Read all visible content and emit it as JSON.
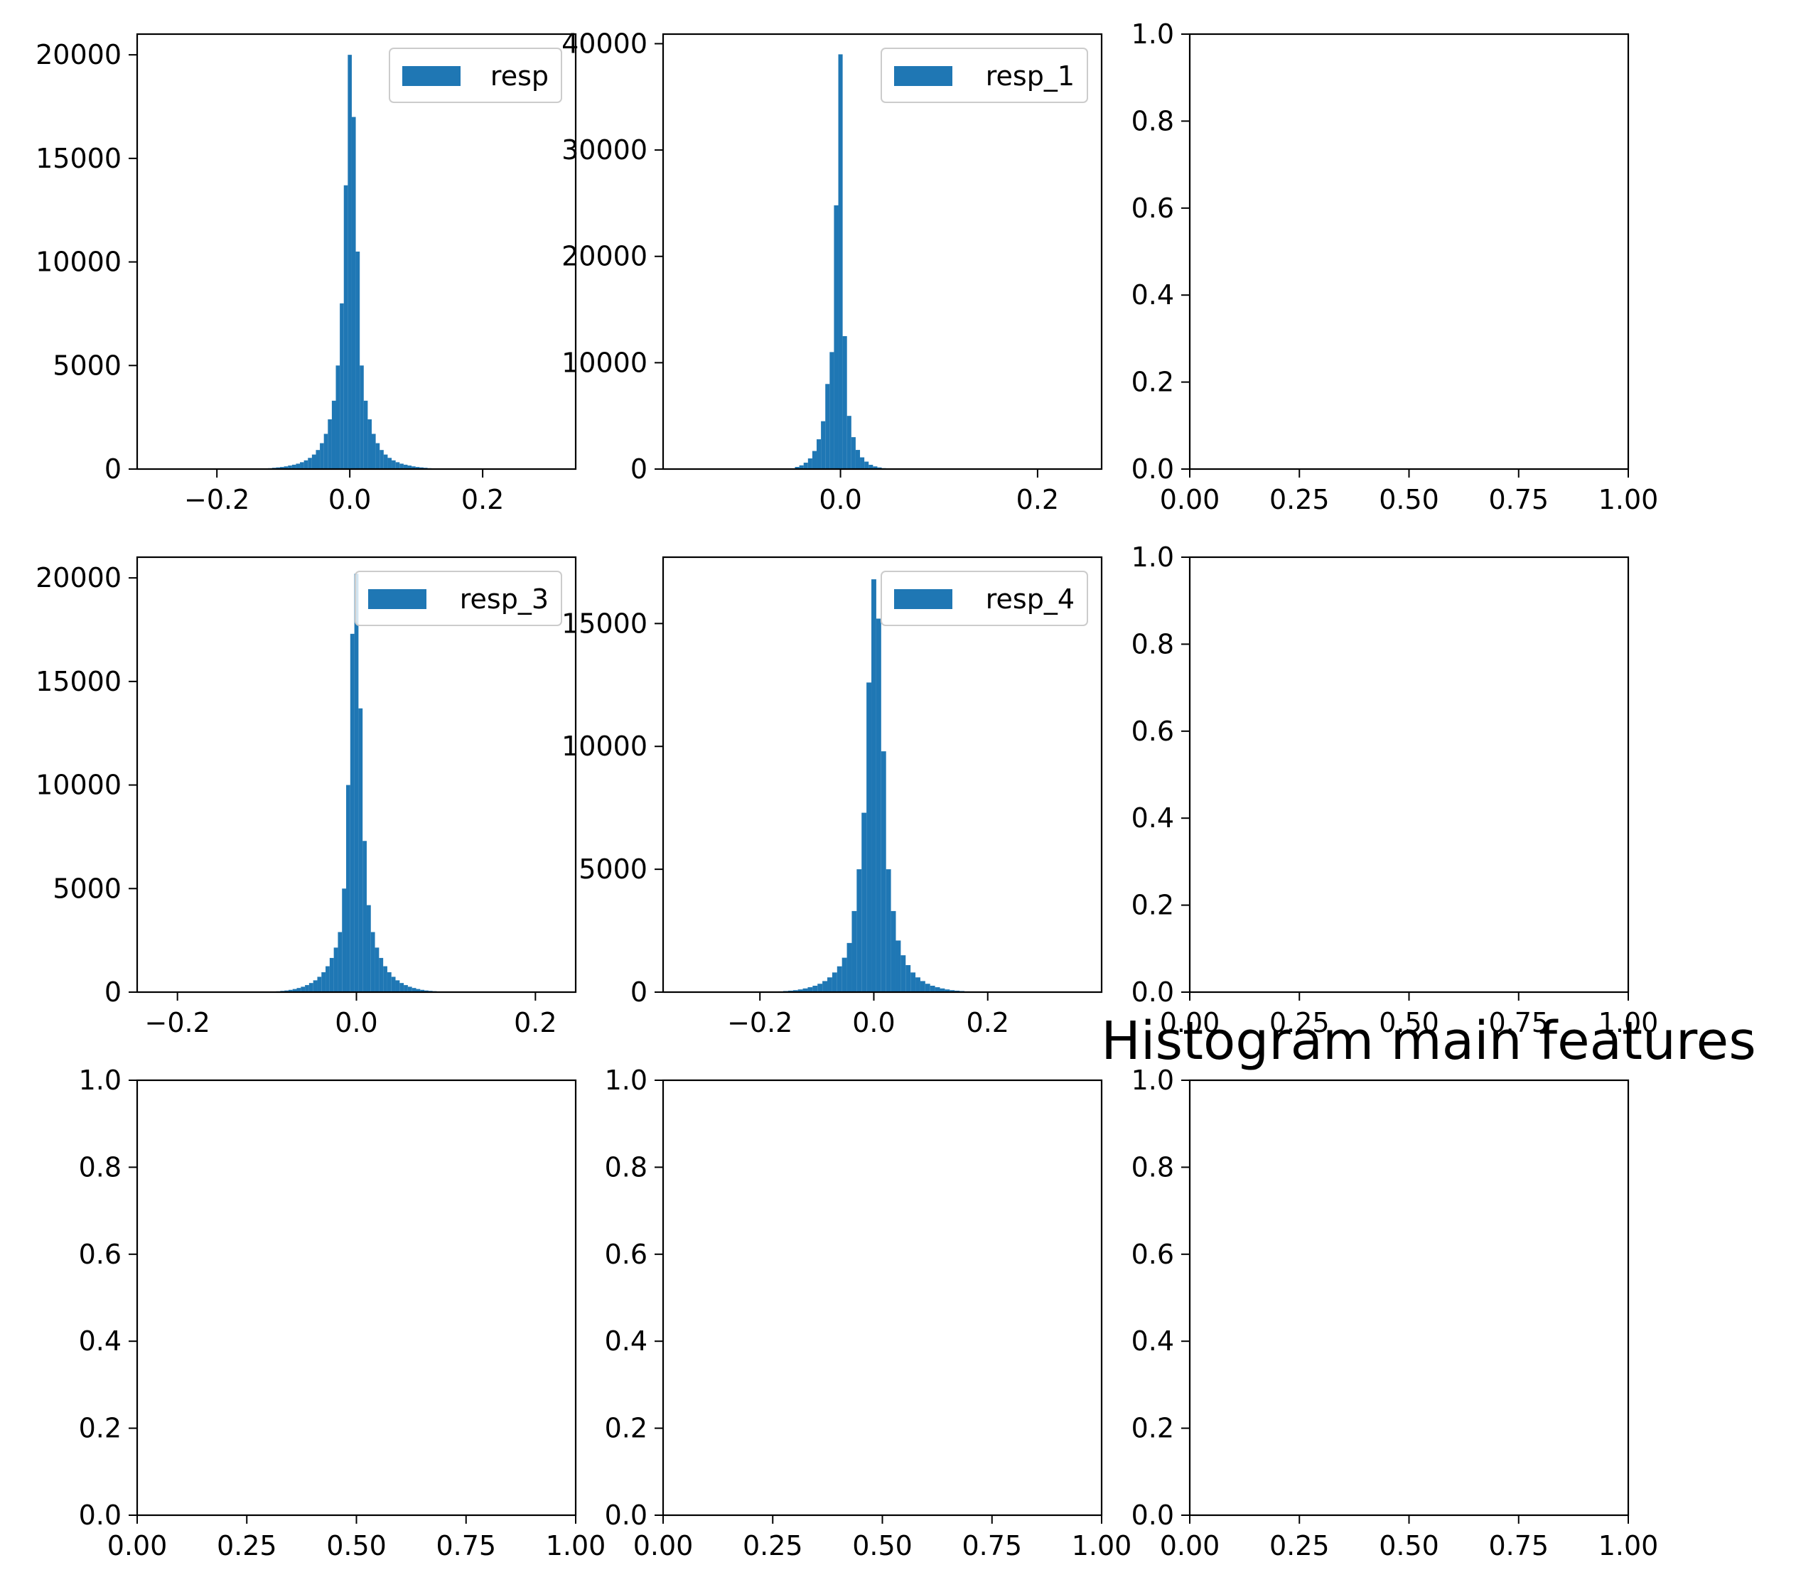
{
  "figure": {
    "title": "Histogram main features",
    "bar_color": "#1f77b4"
  },
  "chart_data": [
    {
      "type": "bar",
      "subtype": "histogram",
      "legend": "resp",
      "legend_position": "upper right",
      "xlim": [
        -0.32,
        0.34
      ],
      "ylim": [
        0,
        21000
      ],
      "xticks": [
        -0.2,
        0.0,
        0.2
      ],
      "xtick_labels": [
        "−0.2",
        "0.0",
        "0.2"
      ],
      "yticks": [
        0,
        5000,
        10000,
        15000,
        20000
      ],
      "ytick_labels": [
        "0",
        "5000",
        "10000",
        "15000",
        "20000"
      ],
      "bin_width": 0.006,
      "x": [
        -0.12,
        -0.114,
        -0.108,
        -0.102,
        -0.096,
        -0.09,
        -0.084,
        -0.078,
        -0.072,
        -0.066,
        -0.06,
        -0.054,
        -0.048,
        -0.042,
        -0.036,
        -0.03,
        -0.024,
        -0.018,
        -0.012,
        -0.006,
        0.0,
        0.006,
        0.012,
        0.018,
        0.024,
        0.03,
        0.036,
        0.042,
        0.048,
        0.054,
        0.06,
        0.066,
        0.072,
        0.078,
        0.084,
        0.09,
        0.096,
        0.102,
        0.108,
        0.114,
        0.12
      ],
      "values": [
        40,
        60,
        80,
        100,
        130,
        170,
        210,
        260,
        330,
        420,
        540,
        700,
        920,
        1250,
        1700,
        2400,
        3300,
        5000,
        8000,
        13700,
        20000,
        17000,
        10500,
        5000,
        3300,
        2400,
        1700,
        1250,
        920,
        700,
        540,
        420,
        330,
        260,
        210,
        170,
        130,
        100,
        80,
        60,
        40
      ]
    },
    {
      "type": "bar",
      "subtype": "histogram",
      "legend": "resp_1",
      "legend_position": "upper right",
      "xlim": [
        -0.18,
        0.265
      ],
      "ylim": [
        0,
        40900
      ],
      "xticks": [
        0.0,
        0.2
      ],
      "xtick_labels": [
        "0.0",
        "0.2"
      ],
      "yticks": [
        0,
        10000,
        20000,
        30000,
        40000
      ],
      "ytick_labels": [
        "0",
        "10000",
        "20000",
        "30000",
        "40000"
      ],
      "bin_width": 0.0044,
      "x": [
        -0.044,
        -0.0396,
        -0.0352,
        -0.0308,
        -0.0264,
        -0.022,
        -0.0176,
        -0.0132,
        -0.0088,
        -0.0044,
        0.0,
        0.0044,
        0.0088,
        0.0132,
        0.0176,
        0.022,
        0.0264,
        0.0308,
        0.0352,
        0.0396,
        0.044
      ],
      "values": [
        200,
        350,
        600,
        1000,
        1700,
        2800,
        4500,
        8000,
        11000,
        24800,
        39000,
        12500,
        5000,
        3000,
        1800,
        1100,
        700,
        400,
        250,
        150,
        80
      ]
    },
    {
      "type": "empty",
      "xlim": [
        0,
        1
      ],
      "ylim": [
        0,
        1
      ],
      "xtick_labels": [
        "0.00",
        "0.25",
        "0.50",
        "0.75",
        "1.00"
      ],
      "ytick_labels": [
        "0.0",
        "0.2",
        "0.4",
        "0.6",
        "0.8",
        "1.0"
      ]
    },
    {
      "type": "bar",
      "subtype": "histogram",
      "legend": "resp_3",
      "legend_position": "upper right",
      "xlim": [
        -0.245,
        0.245
      ],
      "ylim": [
        0,
        21000
      ],
      "xticks": [
        -0.2,
        0.0,
        0.2
      ],
      "xtick_labels": [
        "−0.2",
        "0.0",
        "0.2"
      ],
      "yticks": [
        0,
        5000,
        10000,
        15000,
        20000
      ],
      "ytick_labels": [
        "0",
        "5000",
        "10000",
        "15000",
        "20000"
      ],
      "bin_width": 0.0046,
      "x": [
        -0.0874,
        -0.0828,
        -0.0782,
        -0.0736,
        -0.069,
        -0.0644,
        -0.0598,
        -0.0552,
        -0.0506,
        -0.046,
        -0.0414,
        -0.0368,
        -0.0322,
        -0.0276,
        -0.023,
        -0.0184,
        -0.0138,
        -0.0092,
        -0.0046,
        0.0,
        0.0046,
        0.0092,
        0.0138,
        0.0184,
        0.023,
        0.0276,
        0.0322,
        0.0368,
        0.0414,
        0.046,
        0.0506,
        0.0552,
        0.0598,
        0.0644,
        0.069,
        0.0736,
        0.0782,
        0.0828,
        0.0874,
        0.092,
        0.0966,
        0.1012,
        0.1058
      ],
      "values": [
        40,
        60,
        80,
        110,
        150,
        200,
        260,
        340,
        440,
        570,
        740,
        960,
        1250,
        1650,
        2150,
        2900,
        5000,
        10000,
        17300,
        20200,
        13700,
        7300,
        4200,
        2900,
        2150,
        1650,
        1250,
        960,
        740,
        570,
        440,
        340,
        260,
        200,
        150,
        110,
        80,
        60,
        45,
        30,
        20,
        15,
        10
      ]
    },
    {
      "type": "bar",
      "subtype": "histogram",
      "legend": "resp_4",
      "legend_position": "upper right",
      "xlim": [
        -0.37,
        0.4
      ],
      "ylim": [
        0,
        17700
      ],
      "xticks": [
        -0.2,
        0.0,
        0.2
      ],
      "xtick_labels": [
        "−0.2",
        "0.0",
        "0.2"
      ],
      "yticks": [
        0,
        5000,
        10000,
        15000
      ],
      "ytick_labels": [
        "0",
        "5000",
        "10000",
        "15000"
      ],
      "bin_width": 0.0086,
      "x": [
        -0.1634,
        -0.1548,
        -0.1462,
        -0.1376,
        -0.129,
        -0.1204,
        -0.1118,
        -0.1032,
        -0.0946,
        -0.086,
        -0.0774,
        -0.0688,
        -0.0602,
        -0.0516,
        -0.043,
        -0.0344,
        -0.0258,
        -0.0172,
        -0.0086,
        0.0,
        0.0086,
        0.0172,
        0.0258,
        0.0344,
        0.043,
        0.0516,
        0.0602,
        0.0688,
        0.0774,
        0.086,
        0.0946,
        0.1032,
        0.1118,
        0.1204,
        0.129,
        0.1376,
        0.1462,
        0.1548,
        0.1634
      ],
      "values": [
        30,
        45,
        60,
        80,
        110,
        150,
        200,
        260,
        340,
        450,
        600,
        800,
        1050,
        1400,
        2000,
        3300,
        5000,
        7300,
        12600,
        16800,
        15200,
        9800,
        5000,
        3300,
        2100,
        1500,
        1100,
        800,
        600,
        450,
        340,
        260,
        200,
        150,
        110,
        80,
        60,
        45,
        30
      ]
    },
    {
      "type": "empty",
      "xlim": [
        0,
        1
      ],
      "ylim": [
        0,
        1
      ],
      "xtick_labels": [
        "0.00",
        "0.25",
        "0.50",
        "0.75",
        "1.00"
      ],
      "ytick_labels": [
        "0.0",
        "0.2",
        "0.4",
        "0.6",
        "0.8",
        "1.0"
      ]
    },
    {
      "type": "empty",
      "xlim": [
        0,
        1
      ],
      "ylim": [
        0,
        1
      ],
      "xtick_labels": [
        "0.00",
        "0.25",
        "0.50",
        "0.75",
        "1.00"
      ],
      "ytick_labels": [
        "0.0",
        "0.2",
        "0.4",
        "0.6",
        "0.8",
        "1.0"
      ]
    },
    {
      "type": "empty",
      "xlim": [
        0,
        1
      ],
      "ylim": [
        0,
        1
      ],
      "xtick_labels": [
        "0.00",
        "0.25",
        "0.50",
        "0.75",
        "1.00"
      ],
      "ytick_labels": [
        "0.0",
        "0.2",
        "0.4",
        "0.6",
        "0.8",
        "1.0"
      ]
    },
    {
      "type": "empty",
      "xlim": [
        0,
        1
      ],
      "ylim": [
        0,
        1
      ],
      "xtick_labels": [
        "0.00",
        "0.25",
        "0.50",
        "0.75",
        "1.00"
      ],
      "ytick_labels": [
        "0.0",
        "0.2",
        "0.4",
        "0.6",
        "0.8",
        "1.0"
      ]
    }
  ]
}
